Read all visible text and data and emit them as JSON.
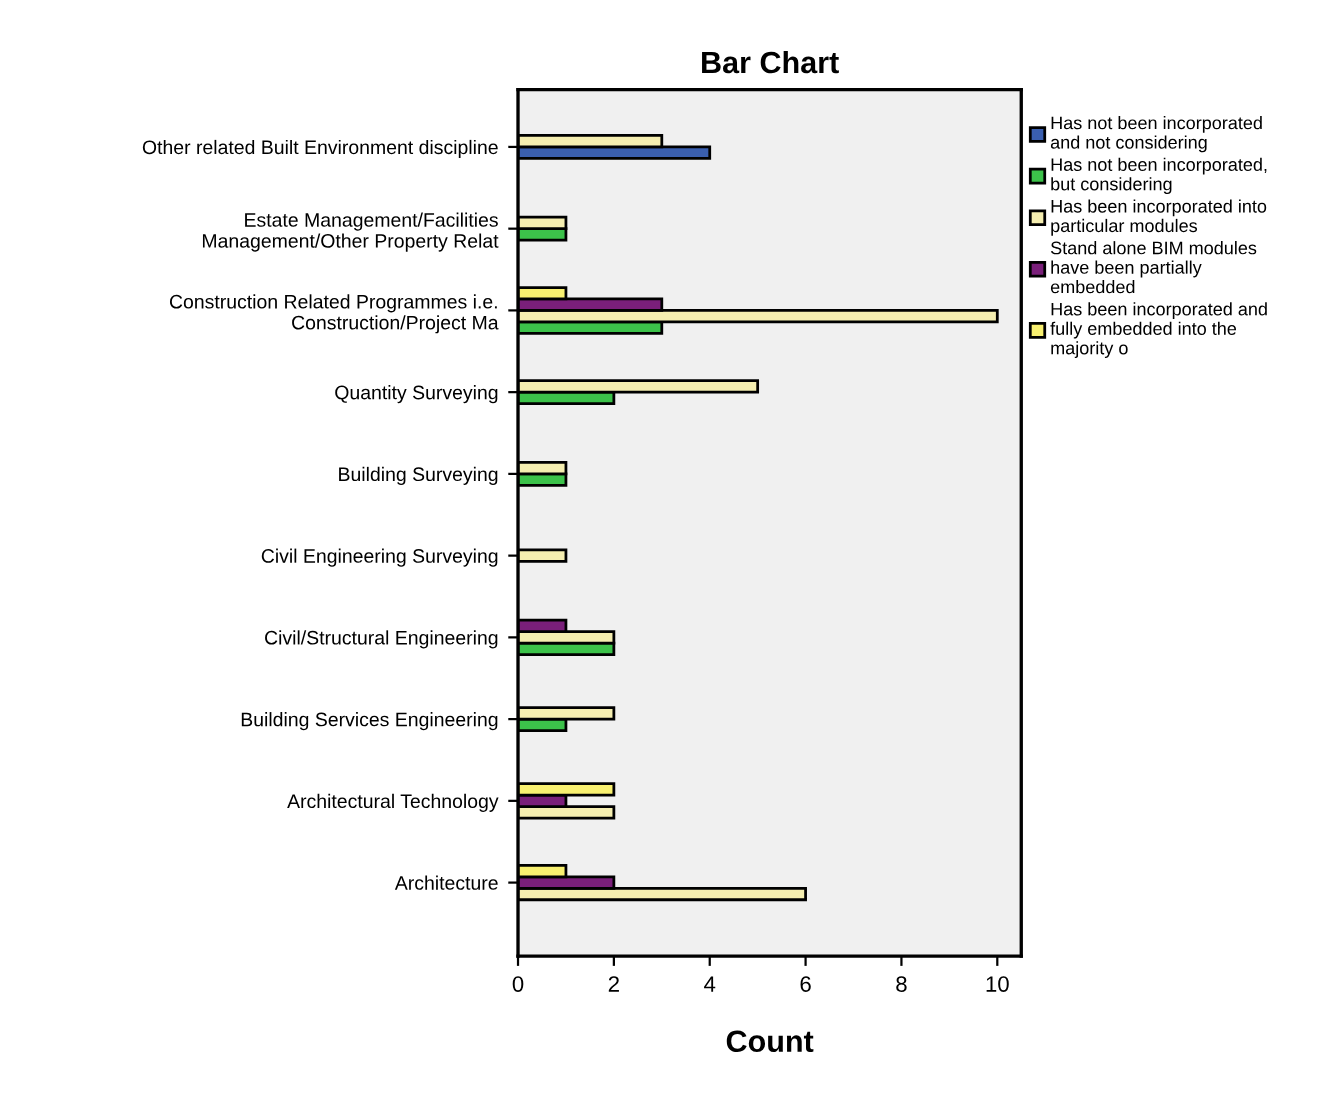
{
  "chart_data": {
    "type": "bar",
    "orientation": "horizontal",
    "title": "Bar Chart",
    "xlabel": "Count",
    "categories": [
      "Other related Built Environment discipline",
      "Estate Management/Facilities\nManagement/Other Property Relat",
      "Construction Related Programmes i.e.\nConstruction/Project Ma",
      "Quantity Surveying",
      "Building Surveying",
      "Civil Engineering Surveying",
      "Civil/Structural Engineering",
      "Building Services Engineering",
      "Architectural Technology",
      "Architecture"
    ],
    "series": [
      {
        "name": "Has not been incorporated\nand not considering",
        "color": "#3a5fb0",
        "values": [
          4,
          null,
          null,
          null,
          null,
          null,
          null,
          null,
          null,
          null
        ]
      },
      {
        "name": "Has not been incorporated,\nbut considering",
        "color": "#3cc24a",
        "values": [
          null,
          1,
          3,
          2,
          1,
          null,
          2,
          1,
          null,
          null
        ]
      },
      {
        "name": "Has been incorporated into\nparticular modules",
        "color": "#f5eeb0",
        "values": [
          3,
          1,
          10,
          5,
          1,
          1,
          2,
          2,
          2,
          6
        ]
      },
      {
        "name": "Stand alone BIM modules\nhave been partially\nembedded",
        "color": "#7a1f7a",
        "values": [
          null,
          null,
          3,
          null,
          null,
          null,
          1,
          null,
          1,
          2
        ]
      },
      {
        "name": "Has been incorporated and\nfully embedded into the\nmajority o",
        "color": "#f8f070",
        "values": [
          null,
          null,
          1,
          null,
          null,
          null,
          null,
          null,
          2,
          1
        ]
      }
    ],
    "xlim": [
      0,
      10.5
    ],
    "xticks": [
      0,
      2,
      4,
      6,
      8,
      10
    ],
    "grid": false,
    "legend": "right"
  }
}
